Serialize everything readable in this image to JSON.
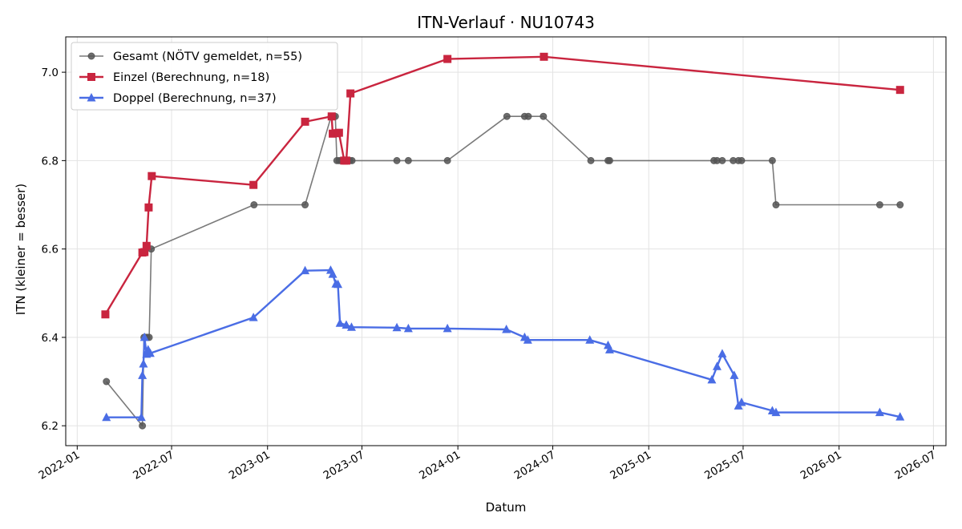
{
  "chart_data": {
    "type": "line",
    "title": "ITN-Verlauf · NU10743",
    "xlabel": "Datum",
    "ylabel": "ITN  (kleiner = besser)",
    "x_type": "date",
    "xlim": [
      "2021-12-10",
      "2026-07-25"
    ],
    "ylim": [
      6.155,
      7.08
    ],
    "x_ticks": [
      "2022-01",
      "2022-07",
      "2023-01",
      "2023-07",
      "2024-01",
      "2024-07",
      "2025-01",
      "2025-07",
      "2026-01",
      "2026-07"
    ],
    "y_ticks": [
      6.2,
      6.4,
      6.6,
      6.8,
      7.0
    ],
    "grid": true,
    "legend_position": "top-left",
    "series": [
      {
        "name": "Gesamt (NÖTV gemeldet, n=55)",
        "color": "#555555",
        "marker": "circle",
        "points": [
          {
            "x": "2022-02-26",
            "y": 6.3
          },
          {
            "x": "2022-05-06",
            "y": 6.2
          },
          {
            "x": "2022-05-09",
            "y": 6.4
          },
          {
            "x": "2022-05-12",
            "y": 6.4
          },
          {
            "x": "2022-05-15",
            "y": 6.4
          },
          {
            "x": "2022-05-19",
            "y": 6.4
          },
          {
            "x": "2022-05-23",
            "y": 6.6
          },
          {
            "x": "2022-12-06",
            "y": 6.7
          },
          {
            "x": "2023-03-14",
            "y": 6.7
          },
          {
            "x": "2023-05-03",
            "y": 6.9
          },
          {
            "x": "2023-05-07",
            "y": 6.9
          },
          {
            "x": "2023-05-11",
            "y": 6.9
          },
          {
            "x": "2023-05-14",
            "y": 6.8
          },
          {
            "x": "2023-05-18",
            "y": 6.8
          },
          {
            "x": "2023-05-22",
            "y": 6.8
          },
          {
            "x": "2023-05-26",
            "y": 6.8
          },
          {
            "x": "2023-05-30",
            "y": 6.8
          },
          {
            "x": "2023-06-03",
            "y": 6.8
          },
          {
            "x": "2023-06-08",
            "y": 6.8
          },
          {
            "x": "2023-06-12",
            "y": 6.8
          },
          {
            "x": "2023-09-06",
            "y": 6.8
          },
          {
            "x": "2023-09-28",
            "y": 6.8
          },
          {
            "x": "2023-12-12",
            "y": 6.8
          },
          {
            "x": "2024-04-04",
            "y": 6.9
          },
          {
            "x": "2024-05-08",
            "y": 6.9
          },
          {
            "x": "2024-05-15",
            "y": 6.9
          },
          {
            "x": "2024-06-13",
            "y": 6.9
          },
          {
            "x": "2024-09-12",
            "y": 6.8
          },
          {
            "x": "2024-10-15",
            "y": 6.8
          },
          {
            "x": "2024-10-18",
            "y": 6.8
          },
          {
            "x": "2025-05-06",
            "y": 6.8
          },
          {
            "x": "2025-05-12",
            "y": 6.8
          },
          {
            "x": "2025-05-22",
            "y": 6.8
          },
          {
            "x": "2025-06-12",
            "y": 6.8
          },
          {
            "x": "2025-06-22",
            "y": 6.8
          },
          {
            "x": "2025-06-28",
            "y": 6.8
          },
          {
            "x": "2025-08-26",
            "y": 6.8
          },
          {
            "x": "2025-09-02",
            "y": 6.7
          },
          {
            "x": "2026-03-20",
            "y": 6.7
          },
          {
            "x": "2026-04-28",
            "y": 6.7
          }
        ]
      },
      {
        "name": "Einzel (Berechnung, n=18)",
        "color": "#c9253f",
        "marker": "square",
        "points": [
          {
            "x": "2022-02-24",
            "y": 6.452
          },
          {
            "x": "2022-05-06",
            "y": 6.592
          },
          {
            "x": "2022-05-10",
            "y": 6.593
          },
          {
            "x": "2022-05-14",
            "y": 6.607
          },
          {
            "x": "2022-05-18",
            "y": 6.694
          },
          {
            "x": "2022-05-24",
            "y": 6.765
          },
          {
            "x": "2022-12-05",
            "y": 6.745
          },
          {
            "x": "2023-03-14",
            "y": 6.888
          },
          {
            "x": "2023-05-04",
            "y": 6.9
          },
          {
            "x": "2023-05-06",
            "y": 6.861
          },
          {
            "x": "2023-05-14",
            "y": 6.862
          },
          {
            "x": "2023-05-18",
            "y": 6.863
          },
          {
            "x": "2023-05-28",
            "y": 6.8
          },
          {
            "x": "2023-06-01",
            "y": 6.8
          },
          {
            "x": "2023-06-09",
            "y": 6.952
          },
          {
            "x": "2023-12-12",
            "y": 7.03
          },
          {
            "x": "2024-06-14",
            "y": 7.035
          },
          {
            "x": "2026-04-28",
            "y": 6.96
          }
        ]
      },
      {
        "name": "Doppel (Berechnung, n=37)",
        "color": "#4a6de5",
        "marker": "triangle",
        "points": [
          {
            "x": "2022-02-26",
            "y": 6.219
          },
          {
            "x": "2022-05-04",
            "y": 6.219
          },
          {
            "x": "2022-05-06",
            "y": 6.314
          },
          {
            "x": "2022-05-08",
            "y": 6.34
          },
          {
            "x": "2022-05-10",
            "y": 6.4
          },
          {
            "x": "2022-05-14",
            "y": 6.362
          },
          {
            "x": "2022-05-17",
            "y": 6.372
          },
          {
            "x": "2022-05-21",
            "y": 6.364
          },
          {
            "x": "2022-12-05",
            "y": 6.445
          },
          {
            "x": "2023-03-14",
            "y": 6.551
          },
          {
            "x": "2023-05-02",
            "y": 6.552
          },
          {
            "x": "2023-05-06",
            "y": 6.543
          },
          {
            "x": "2023-05-12",
            "y": 6.521
          },
          {
            "x": "2023-05-16",
            "y": 6.52
          },
          {
            "x": "2023-05-20",
            "y": 6.432
          },
          {
            "x": "2023-06-01",
            "y": 6.428
          },
          {
            "x": "2023-06-11",
            "y": 6.423
          },
          {
            "x": "2023-09-06",
            "y": 6.422
          },
          {
            "x": "2023-09-28",
            "y": 6.42
          },
          {
            "x": "2023-12-12",
            "y": 6.42
          },
          {
            "x": "2024-04-03",
            "y": 6.418
          },
          {
            "x": "2024-05-08",
            "y": 6.4
          },
          {
            "x": "2024-05-14",
            "y": 6.394
          },
          {
            "x": "2024-09-10",
            "y": 6.394
          },
          {
            "x": "2024-10-15",
            "y": 6.382
          },
          {
            "x": "2024-10-18",
            "y": 6.372
          },
          {
            "x": "2025-05-02",
            "y": 6.304
          },
          {
            "x": "2025-05-12",
            "y": 6.334
          },
          {
            "x": "2025-05-22",
            "y": 6.363
          },
          {
            "x": "2025-06-14",
            "y": 6.314
          },
          {
            "x": "2025-06-22",
            "y": 6.245
          },
          {
            "x": "2025-06-28",
            "y": 6.253
          },
          {
            "x": "2025-08-26",
            "y": 6.234
          },
          {
            "x": "2025-09-02",
            "y": 6.23
          },
          {
            "x": "2026-03-20",
            "y": 6.23
          },
          {
            "x": "2026-04-28",
            "y": 6.22
          }
        ]
      }
    ]
  }
}
